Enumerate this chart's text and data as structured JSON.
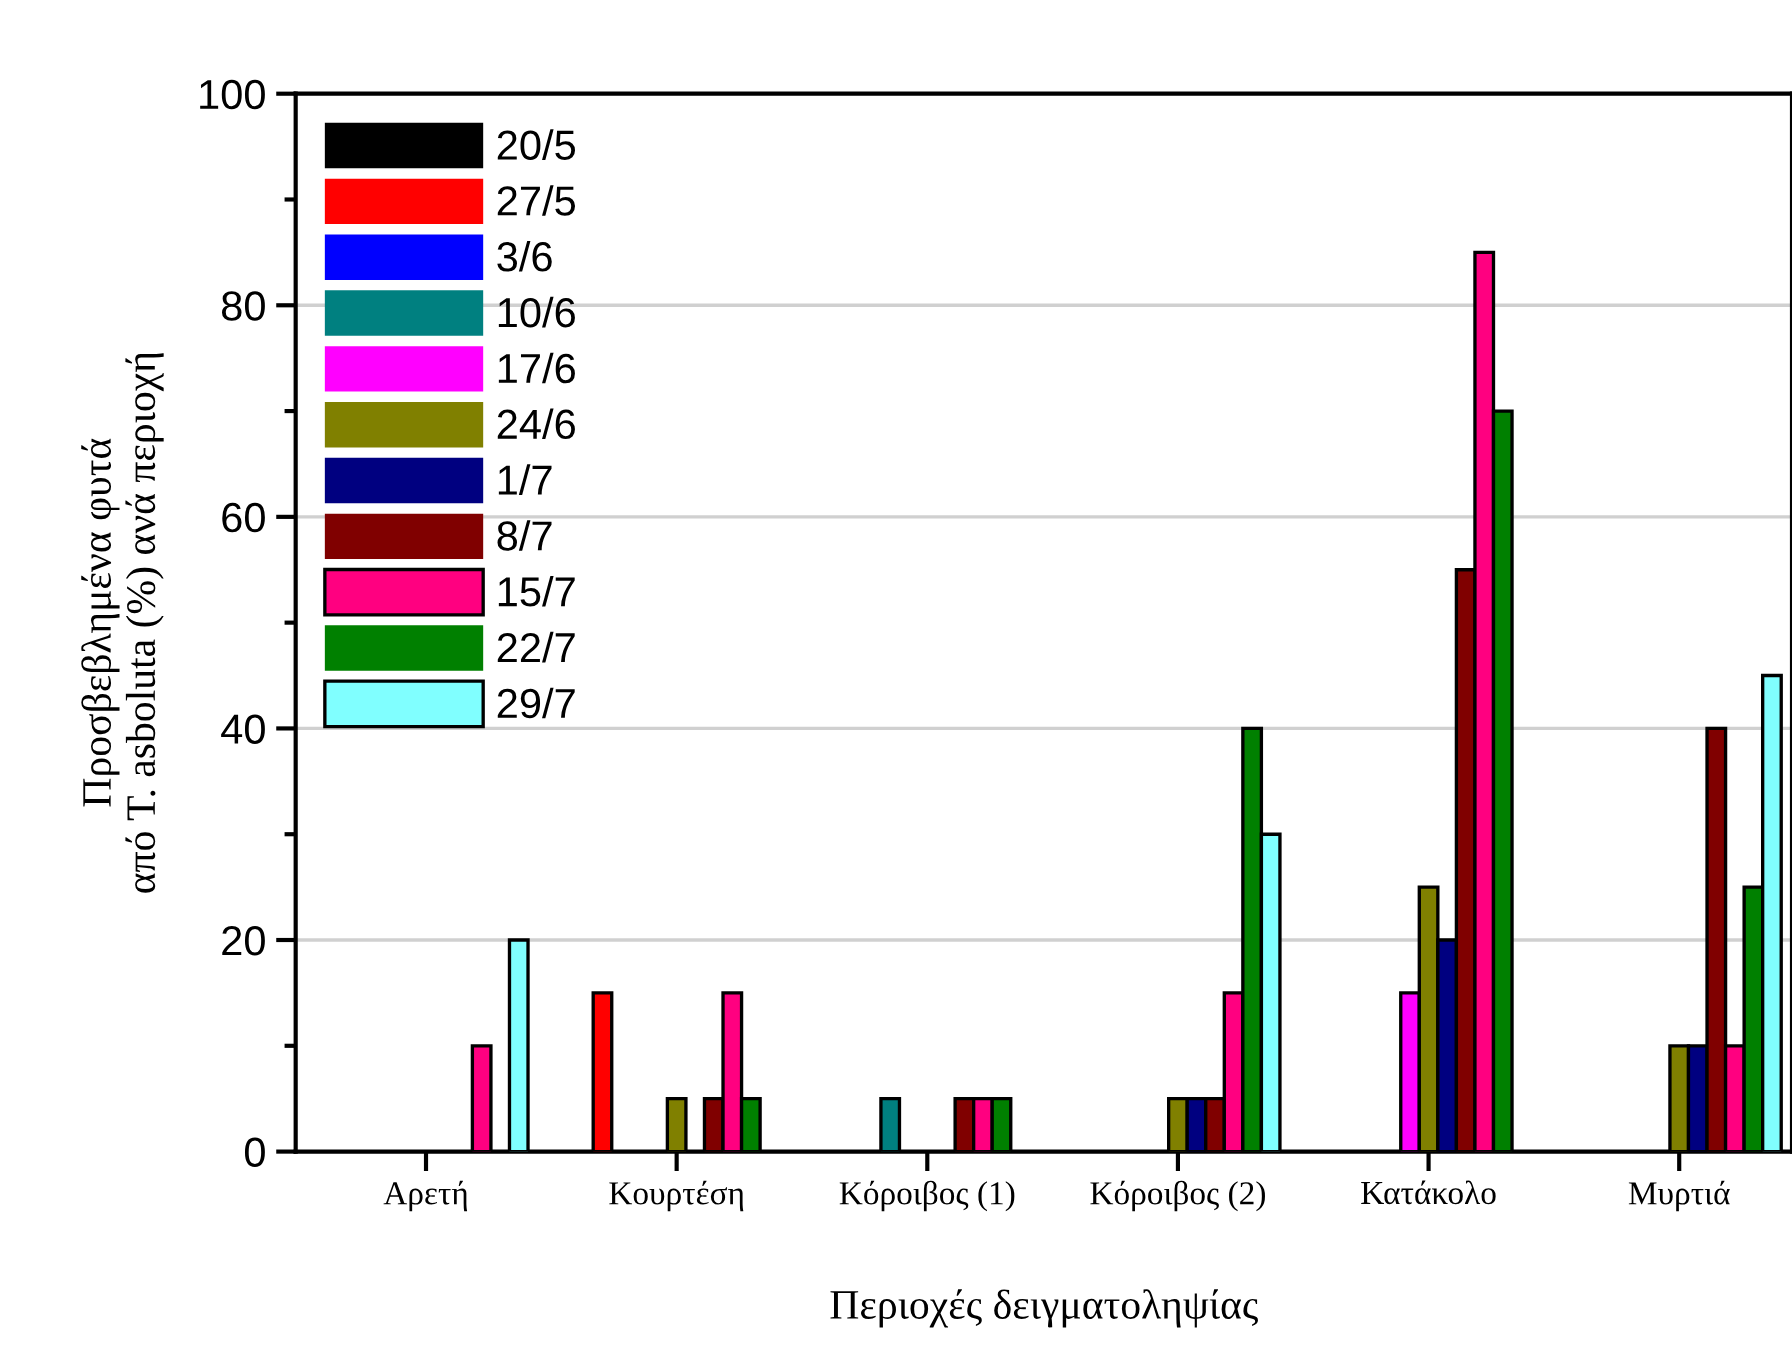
{
  "chart_data": {
    "type": "bar",
    "xlabel": "Περιοχές δειγματοληψίας",
    "ylabel": "Προσβεβλημένα φυτά\nαπό T. asboluta (%) ανά περιοχή",
    "categories": [
      "Αρετή",
      "Κουρτέση",
      "Κόροιβος (1)",
      "Κόροιβος (2)",
      "Κατάκολο",
      "Μυρτιά"
    ],
    "series": [
      {
        "name": "20/5",
        "color": "#000000",
        "values": [
          0,
          0,
          0,
          0,
          0,
          0
        ]
      },
      {
        "name": "27/5",
        "color": "#ff0000",
        "values": [
          0,
          15,
          0,
          0,
          0,
          0
        ]
      },
      {
        "name": "3/6",
        "color": "#0000ff",
        "values": [
          0,
          0,
          0,
          0,
          0,
          0
        ]
      },
      {
        "name": "10/6",
        "color": "#008080",
        "values": [
          0,
          0,
          5,
          0,
          0,
          0
        ]
      },
      {
        "name": "17/6",
        "color": "#ff00ff",
        "values": [
          0,
          0,
          0,
          0,
          15,
          0
        ]
      },
      {
        "name": "24/6",
        "color": "#808000",
        "values": [
          0,
          5,
          0,
          5,
          25,
          10
        ]
      },
      {
        "name": "1/7",
        "color": "#000080",
        "values": [
          0,
          0,
          0,
          5,
          20,
          10
        ]
      },
      {
        "name": "8/7",
        "color": "#800000",
        "values": [
          0,
          5,
          5,
          5,
          55,
          40
        ]
      },
      {
        "name": "15/7",
        "color": "#ff0080",
        "values": [
          10,
          15,
          5,
          15,
          85,
          10
        ]
      },
      {
        "name": "22/7",
        "color": "#008000",
        "values": [
          0,
          5,
          5,
          40,
          70,
          25
        ]
      },
      {
        "name": "29/7",
        "color": "#80ffff",
        "values": [
          20,
          0,
          0,
          30,
          0,
          45
        ]
      }
    ],
    "ylim": [
      0,
      100
    ],
    "yticks": [
      0,
      20,
      40,
      60,
      80,
      100
    ],
    "grid": "y",
    "legend": "top left"
  }
}
